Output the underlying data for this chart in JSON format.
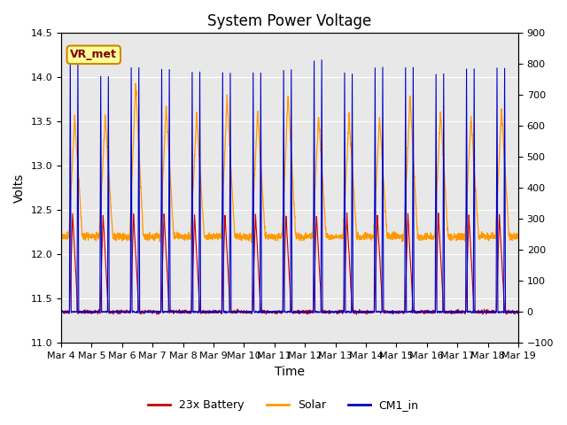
{
  "title": "System Power Voltage",
  "xlabel": "Time",
  "ylabel_left": "Volts",
  "ylabel_right": "",
  "ylim_left": [
    11.0,
    14.5
  ],
  "ylim_right": [
    -100,
    900
  ],
  "yticks_left": [
    11.0,
    11.5,
    12.0,
    12.5,
    13.0,
    13.5,
    14.0,
    14.5
  ],
  "yticks_right": [
    -100,
    0,
    100,
    200,
    300,
    400,
    500,
    600,
    700,
    800,
    900
  ],
  "xtick_labels": [
    "Mar 4",
    "Mar 5",
    "Mar 6",
    "Mar 7",
    "Mar 8",
    "Mar 9",
    "Mar 10",
    "Mar 11",
    "Mar 12",
    "Mar 13",
    "Mar 14",
    "Mar 15",
    "Mar 16",
    "Mar 17",
    "Mar 18",
    "Mar 19"
  ],
  "legend_labels": [
    "23x Battery",
    "Solar",
    "CM1_in"
  ],
  "legend_colors": [
    "#cc0000",
    "#ff9900",
    "#0000cc"
  ],
  "line_colors": [
    "#cc0000",
    "#ff9900",
    "#0000cc"
  ],
  "annotation_text": "VR_met",
  "annotation_box_color": "#ffff99",
  "annotation_box_edge": "#cc8800",
  "background_color": "#e8e8e8",
  "grid_color": "#ffffff",
  "num_days": 16,
  "base_volt": 11.35,
  "peak_volt_battery": 12.45,
  "peak_volt_solar": 14.0,
  "peak_volt_cm1": 14.2,
  "trough_volt": 11.35,
  "solar_day_base": 12.2,
  "cm1_scale_factor": 66.67,
  "title_fontsize": 12,
  "label_fontsize": 10,
  "tick_fontsize": 8
}
